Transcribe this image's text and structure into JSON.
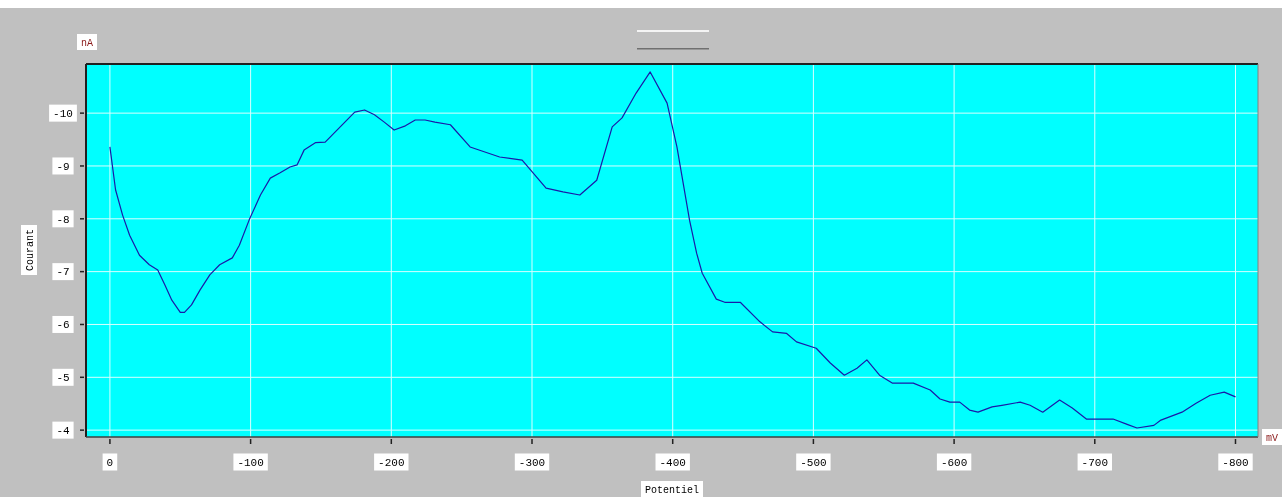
{
  "chart_data": {
    "type": "line",
    "xlabel": "Potentiel",
    "ylabel": "Courant",
    "annotations": [
      "nA",
      "mV"
    ],
    "x": [
      0,
      -4,
      -9,
      -14,
      -21,
      -28,
      -34,
      -39,
      -44,
      -50,
      -53,
      -58,
      -64,
      -71,
      -78,
      -87,
      -92,
      -99,
      -107,
      -114,
      -121,
      -128,
      -133,
      -138,
      -146,
      -153,
      -160,
      -167,
      -174,
      -181,
      -188,
      -195,
      -202,
      -210,
      -217,
      -224,
      -231,
      -242,
      -256,
      -277,
      -293,
      -310,
      -322,
      -334,
      -346,
      -357,
      -364,
      -374,
      -384,
      -396,
      -403,
      -412,
      -417,
      -421,
      -431,
      -437,
      -448,
      -462,
      -471,
      -481,
      -488,
      -502,
      -512,
      -522,
      -531,
      -538,
      -547,
      -556,
      -571,
      -583,
      -590,
      -597,
      -604,
      -611,
      -617,
      -627,
      -634,
      -647,
      -654,
      -663,
      -675,
      -684,
      -694,
      -703,
      -713,
      -723,
      -730,
      -742,
      -747,
      -762,
      -772,
      -782,
      -792,
      -800
    ],
    "series": [
      {
        "color": "#1a1aa8",
        "values": [
          -9.36,
          -8.55,
          -8.07,
          -7.69,
          -7.31,
          -7.13,
          -7.03,
          -6.75,
          -6.46,
          -6.23,
          -6.23,
          -6.37,
          -6.65,
          -6.94,
          -7.13,
          -7.26,
          -7.5,
          -7.98,
          -8.45,
          -8.77,
          -8.87,
          -8.98,
          -9.02,
          -9.3,
          -9.44,
          -9.45,
          -9.64,
          -9.83,
          -10.02,
          -10.06,
          -9.97,
          -9.83,
          -9.68,
          -9.76,
          -9.87,
          -9.87,
          -9.83,
          -9.78,
          -9.36,
          -9.17,
          -9.11,
          -8.58,
          -8.51,
          -8.45,
          -8.73,
          -9.74,
          -9.91,
          -10.38,
          -10.78,
          -10.19,
          -9.36,
          -7.97,
          -7.35,
          -6.97,
          -6.48,
          -6.42,
          -6.42,
          -6.05,
          -5.86,
          -5.83,
          -5.67,
          -5.55,
          -5.27,
          -5.04,
          -5.17,
          -5.33,
          -5.04,
          -4.89,
          -4.89,
          -4.76,
          -4.59,
          -4.53,
          -4.53,
          -4.38,
          -4.34,
          -4.44,
          -4.47,
          -4.53,
          -4.47,
          -4.34,
          -4.57,
          -4.42,
          -4.21,
          -4.21,
          -4.21,
          -4.11,
          -4.04,
          -4.09,
          -4.19,
          -4.34,
          -4.51,
          -4.66,
          -4.72,
          -4.63
        ]
      }
    ],
    "xlim": [
      17,
      -816
    ],
    "xticks": [
      0,
      -100,
      -200,
      -300,
      -400,
      -500,
      -600,
      -700,
      -800
    ],
    "ylim": [
      -3.87,
      -10.93
    ],
    "yticks": [
      -4,
      -5,
      -6,
      -7,
      -8,
      -9,
      -10
    ],
    "grid": true,
    "marker": "none",
    "line_style": "solid"
  }
}
